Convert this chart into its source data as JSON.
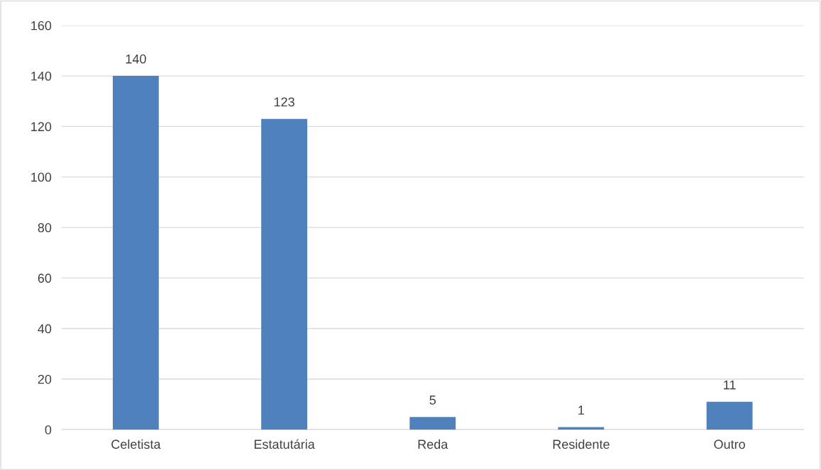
{
  "chart_data": {
    "type": "bar",
    "categories": [
      "Celetista",
      "Estatutária",
      "Reda",
      "Residente",
      "Outro"
    ],
    "values": [
      140,
      123,
      5,
      1,
      11
    ],
    "color": "#4f81bd",
    "ylim": [
      0,
      160
    ],
    "yticks": [
      0,
      20,
      40,
      60,
      80,
      100,
      120,
      140,
      160
    ],
    "grid": "y",
    "data_labels": true,
    "legend": false
  }
}
